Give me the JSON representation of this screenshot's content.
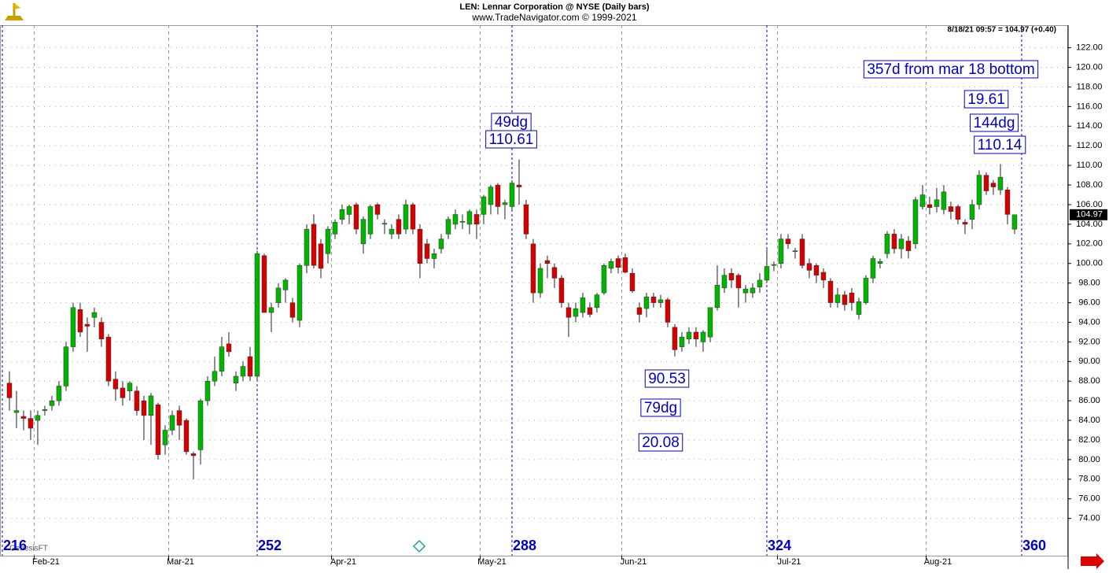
{
  "chart_data": {
    "type": "candlestick",
    "title": "LEN:  Lennar Corporation @ NYSE  (Daily bars)",
    "subtitle": "www.TradeNavigator.com © 1999-2021",
    "quote": "8/18/21 09:57 = 104.97 (+0.40)",
    "watermark": "GenesisFT",
    "up_color": "#00b400",
    "down_color": "#d40000",
    "cycle_color": "#0000cc",
    "grid": true,
    "xlim": [
      215.67,
      366.56
    ],
    "ylim": [
      70.2,
      124.3
    ],
    "yticks": [
      {
        "value": 74,
        "label": "74.00"
      },
      {
        "value": 76,
        "label": "76.00"
      },
      {
        "value": 78,
        "label": "78.00"
      },
      {
        "value": 80,
        "label": "80.00"
      },
      {
        "value": 82,
        "label": "82.00"
      },
      {
        "value": 84,
        "label": "84.00"
      },
      {
        "value": 86,
        "label": "86.00"
      },
      {
        "value": 88,
        "label": "88.00"
      },
      {
        "value": 90,
        "label": "90.00"
      },
      {
        "value": 92,
        "label": "92.00"
      },
      {
        "value": 94,
        "label": "94.00"
      },
      {
        "value": 96,
        "label": "96.00"
      },
      {
        "value": 98,
        "label": "98.00"
      },
      {
        "value": 100,
        "label": "100.00"
      },
      {
        "value": 102,
        "label": "102.00"
      },
      {
        "value": 104,
        "label": "104.00"
      },
      {
        "value": 106,
        "label": "106.00"
      },
      {
        "value": 108,
        "label": "108.00"
      },
      {
        "value": 110,
        "label": "110.00"
      },
      {
        "value": 112,
        "label": "112.00"
      },
      {
        "value": 114,
        "label": "114.00"
      },
      {
        "value": 116,
        "label": "116.00"
      },
      {
        "value": 118,
        "label": "118.00"
      },
      {
        "value": 120,
        "label": "120.00"
      },
      {
        "value": 122,
        "label": "122.00"
      }
    ],
    "xticks": [
      {
        "value": 220.5,
        "label": "Feb-21"
      },
      {
        "value": 239.5,
        "label": "Mar-21"
      },
      {
        "value": 262.5,
        "label": "Apr-21"
      },
      {
        "value": 283.5,
        "label": "May-21"
      },
      {
        "value": 303.5,
        "label": "Jun-21"
      },
      {
        "value": 325.5,
        "label": "Jul-21"
      },
      {
        "value": 346.5,
        "label": "Aug-21"
      }
    ],
    "cycle_lines": [
      216,
      252,
      288,
      324,
      360
    ],
    "last_price": 104.97,
    "annotations": [
      "357d from mar 18 bottom",
      "19.61",
      "144dg",
      "110.14",
      "49dg",
      "110.61",
      "90.53",
      "79dg",
      "20.08"
    ],
    "x": [
      217,
      218,
      219,
      220,
      221,
      222,
      223,
      224,
      225,
      226,
      227,
      228,
      229,
      230,
      231,
      232,
      233,
      234,
      235,
      236,
      237,
      238,
      239,
      240,
      241,
      242,
      243,
      244,
      245,
      246,
      247,
      248,
      249,
      250,
      251,
      252,
      253,
      254,
      255,
      256,
      257,
      258,
      259,
      260,
      261,
      262,
      263,
      264,
      265,
      266,
      267,
      268,
      269,
      270,
      271,
      272,
      273,
      274,
      275,
      276,
      277,
      278,
      279,
      280,
      281,
      282,
      283,
      284,
      285,
      286,
      287,
      288,
      289,
      290,
      291,
      292,
      293,
      294,
      295,
      296,
      297,
      298,
      299,
      300,
      301,
      302,
      303,
      304,
      305,
      306,
      307,
      308,
      309,
      310,
      311,
      312,
      313,
      314,
      315,
      316,
      317,
      318,
      319,
      320,
      321,
      322,
      323,
      324,
      325,
      326,
      327,
      328,
      329,
      330,
      331,
      332,
      333,
      334,
      335,
      336,
      337,
      338,
      339,
      340,
      341,
      342,
      343,
      344,
      345,
      346,
      347,
      348,
      349,
      350,
      351,
      352,
      353,
      354,
      355,
      356,
      357,
      358,
      359
    ],
    "open": [
      87.8,
      84.8,
      84.4,
      84.2,
      84,
      85,
      85.5,
      86,
      87.5,
      91.5,
      95.3,
      93.8,
      94.5,
      94,
      92.5,
      88.2,
      87.3,
      87,
      87,
      86,
      84.5,
      85.6,
      81.5,
      83,
      85,
      84,
      80.6,
      81,
      86,
      88,
      89,
      91.8,
      87.8,
      88.5,
      90.5,
      88.5,
      100.8,
      95,
      96,
      97.3,
      96,
      94.2,
      99.8,
      104,
      102,
      101,
      103,
      104.5,
      105,
      106,
      102,
      103,
      106,
      104,
      103,
      104.5,
      103.5,
      106,
      103.5,
      102,
      100.5,
      101.5,
      103,
      104,
      104.2,
      104,
      105,
      105,
      106,
      108,
      106,
      105.8,
      108,
      106,
      102,
      97,
      100.3,
      99.6,
      98.5,
      95.5,
      94.6,
      95,
      95.5,
      95.5,
      97,
      99.5,
      100.5,
      100.6,
      99,
      95.5,
      95.4,
      96.6,
      96,
      96.3,
      93.5,
      91.5,
      92.3,
      93,
      92,
      92.5,
      95.5,
      97.5,
      99,
      98.8,
      97,
      97,
      97.6,
      98.3,
      99.8,
      100,
      102.5,
      101.2,
      102.5,
      100,
      99.8,
      99.1,
      98.2,
      96,
      96.8,
      97,
      94.8,
      96,
      98.5,
      100,
      101,
      103,
      101.5,
      102.3,
      102,
      105.8,
      106,
      105.8,
      105.5,
      105.8,
      105.8,
      104.2,
      104.5,
      106,
      109,
      108.2,
      107.5,
      107.5,
      103.5
    ],
    "high": [
      89,
      87,
      85,
      85,
      85,
      85.5,
      86.5,
      88,
      92,
      96,
      96,
      94.5,
      95.5,
      94.5,
      92.8,
      89,
      88,
      88,
      87.5,
      86.5,
      86.8,
      85.8,
      83.5,
      85,
      85.5,
      84.2,
      80.8,
      86.2,
      88.5,
      90.5,
      92.5,
      93,
      89,
      90,
      91.5,
      101.3,
      101,
      96,
      98,
      98.5,
      96.5,
      100,
      104,
      105,
      102.5,
      103.8,
      104.5,
      106,
      106,
      106.2,
      104.8,
      106,
      106.2,
      104.5,
      104,
      105,
      106.5,
      106.2,
      104,
      102.5,
      101.5,
      103,
      104.8,
      105.5,
      105,
      105.5,
      105.5,
      107,
      108,
      108.2,
      106.5,
      108.5,
      110.61,
      106.5,
      102.5,
      100,
      100.8,
      100,
      98.8,
      96,
      96,
      97,
      96,
      97,
      100,
      100.5,
      100.8,
      101,
      99.5,
      96,
      97,
      97,
      96.8,
      96.5,
      93.8,
      93,
      93.5,
      93.5,
      93.2,
      95.5,
      99.8,
      99.5,
      99.5,
      99,
      97.8,
      98,
      99,
      101.5,
      100.2,
      103,
      103,
      101.6,
      103,
      100.5,
      100,
      99.5,
      98.5,
      97.5,
      97.2,
      97.5,
      96.5,
      98.8,
      100.8,
      100.5,
      103.3,
      103.5,
      103,
      102.8,
      106.8,
      108,
      106.8,
      107.7,
      108,
      106.3,
      106,
      104.5,
      106.5,
      109.5,
      109.3,
      108.5,
      110.14,
      107.8,
      105
    ],
    "low": [
      85,
      83.2,
      83,
      82,
      81.5,
      84.5,
      85,
      85.5,
      87,
      91,
      92.5,
      91,
      93.5,
      91.5,
      87.5,
      86,
      85.5,
      86,
      84.5,
      82,
      81.5,
      80,
      80.5,
      82.5,
      82,
      80.5,
      78,
      79.5,
      85.5,
      87.5,
      88.5,
      90.5,
      87,
      88,
      88,
      88,
      95,
      93,
      95.5,
      96,
      94,
      93.5,
      99,
      99.5,
      98.5,
      100,
      102.5,
      104,
      104,
      103,
      101,
      102.5,
      104.5,
      103,
      102.5,
      102.5,
      103,
      103,
      98.5,
      100,
      99.5,
      101,
      102.5,
      103.5,
      103.5,
      103,
      102.5,
      104,
      105,
      105,
      104.5,
      105.5,
      106,
      102.5,
      96,
      96.5,
      98.5,
      97.5,
      95.5,
      92.5,
      94,
      94.5,
      94.5,
      95,
      96.8,
      99,
      99,
      99,
      97,
      94,
      94.5,
      95.5,
      95.5,
      93.5,
      90.53,
      91,
      91.8,
      91.5,
      91,
      92,
      95.2,
      97,
      97.5,
      95.5,
      96,
      96.5,
      97,
      98,
      99.2,
      99.5,
      101.5,
      100.5,
      99.5,
      98.5,
      98,
      97.5,
      95.5,
      95.5,
      95.2,
      95.2,
      94.3,
      95.8,
      98,
      99.5,
      100.5,
      101,
      100.5,
      100.5,
      101.5,
      105.5,
      105,
      105.2,
      105,
      104.5,
      104,
      103,
      103.5,
      105.5,
      107,
      107,
      107,
      104,
      103
    ],
    "close": [
      86.3,
      85,
      84.2,
      83.2,
      84.5,
      85.1,
      86,
      87.5,
      91.5,
      95.5,
      93,
      93.6,
      95,
      92.3,
      88,
      87.2,
      86.3,
      87.8,
      85,
      84.5,
      86.5,
      80.5,
      83,
      84.5,
      83.5,
      80.8,
      80.4,
      86,
      88,
      89,
      91.5,
      91,
      88.5,
      89.5,
      88.5,
      101,
      95,
      95.5,
      97.5,
      98.3,
      94.5,
      99.8,
      103.5,
      99.8,
      99.5,
      103.5,
      104.2,
      105.5,
      105.8,
      103.5,
      104.5,
      105.8,
      105,
      104.1,
      103.5,
      103,
      106,
      103.5,
      100,
      100.5,
      101,
      102.5,
      104.5,
      105,
      104.3,
      105.3,
      104,
      106.8,
      107.8,
      105.8,
      106.2,
      108.2,
      107.8,
      103,
      97,
      99.5,
      100,
      98.5,
      96,
      94.5,
      95.4,
      96.5,
      94.8,
      96.8,
      99.8,
      100.2,
      99.6,
      99.1,
      97.2,
      94.8,
      96.6,
      96,
      96.3,
      94,
      91.2,
      92.5,
      93,
      92.3,
      93,
      95.5,
      97.8,
      98.8,
      98.3,
      97.5,
      97.4,
      97.5,
      98.3,
      99.7,
      99.9,
      102.5,
      102,
      101.3,
      99.8,
      99.3,
      98.8,
      98.3,
      96,
      96.8,
      95.8,
      96,
      96.1,
      98.5,
      100.5,
      100.2,
      103,
      101.5,
      102.5,
      101.3,
      106.5,
      107,
      105.7,
      106.5,
      107.3,
      105.3,
      104.5,
      104,
      106,
      109,
      107.4,
      107.8,
      108.8,
      105,
      104.97
    ]
  }
}
